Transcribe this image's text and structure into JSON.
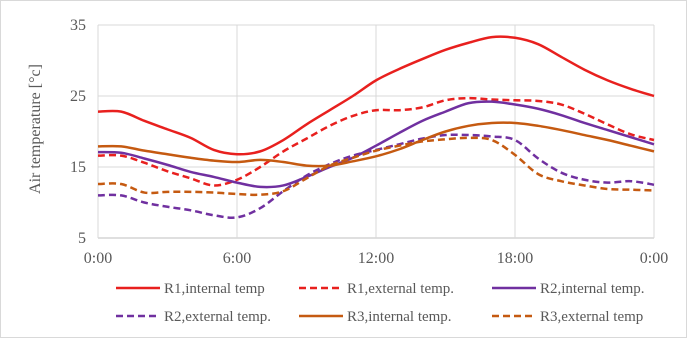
{
  "chart_data": {
    "type": "line",
    "title": "",
    "xlabel": "",
    "ylabel": "Air temperature [°c]",
    "x_ticks": [
      "0:00",
      "6:00",
      "12:00",
      "18:00",
      "0:00"
    ],
    "x_range": [
      0,
      24
    ],
    "y_ticks": [
      "5",
      "15",
      "25",
      "35"
    ],
    "ylim": [
      5,
      35
    ],
    "grid": "vertical and horizontal major gridlines",
    "legend_position": "bottom",
    "series": [
      {
        "name": "R1,internal temp",
        "color": "#e8201e",
        "dash": "solid",
        "x": [
          0,
          1,
          2,
          3,
          4,
          5,
          6,
          7,
          8,
          9,
          10,
          11,
          12,
          13,
          14,
          15,
          16,
          17,
          18,
          19,
          20,
          21,
          22,
          23,
          24
        ],
        "y": [
          22.8,
          22.8,
          21.5,
          20.3,
          19.1,
          17.4,
          16.8,
          17.2,
          18.8,
          21.0,
          23.0,
          25.0,
          27.2,
          28.8,
          30.2,
          31.5,
          32.5,
          33.3,
          33.2,
          32.3,
          30.5,
          28.7,
          27.2,
          26.0,
          25.0
        ]
      },
      {
        "name": "R1,external temp.",
        "color": "#e8201e",
        "dash": "dashed",
        "x": [
          0,
          1,
          2,
          3,
          4,
          5,
          6,
          7,
          8,
          9,
          10,
          11,
          12,
          13,
          14,
          15,
          16,
          17,
          18,
          19,
          20,
          21,
          22,
          23,
          24
        ],
        "y": [
          16.6,
          16.6,
          15.6,
          14.4,
          13.4,
          12.4,
          13.2,
          15.0,
          17.2,
          19.0,
          20.8,
          22.2,
          23.0,
          23.0,
          23.4,
          24.4,
          24.7,
          24.5,
          24.4,
          24.3,
          23.8,
          22.5,
          21.0,
          19.6,
          18.8
        ]
      },
      {
        "name": "R2,internal temp.",
        "color": "#7030a0",
        "dash": "solid",
        "x": [
          0,
          1,
          2,
          3,
          4,
          5,
          6,
          7,
          8,
          9,
          10,
          11,
          12,
          13,
          14,
          15,
          16,
          17,
          18,
          19,
          20,
          21,
          22,
          23,
          24
        ],
        "y": [
          17.1,
          17.0,
          16.2,
          15.3,
          14.3,
          13.6,
          12.8,
          12.2,
          12.4,
          13.6,
          15.0,
          16.3,
          18.0,
          19.8,
          21.5,
          22.8,
          24.0,
          24.2,
          23.8,
          23.2,
          22.3,
          21.2,
          20.2,
          19.2,
          18.2
        ]
      },
      {
        "name": "R2,external temp.",
        "color": "#7030a0",
        "dash": "dashed",
        "x": [
          0,
          1,
          2,
          3,
          4,
          5,
          6,
          7,
          8,
          9,
          10,
          11,
          12,
          13,
          14,
          15,
          16,
          17,
          18,
          19,
          20,
          21,
          22,
          23,
          24
        ],
        "y": [
          11.0,
          11.0,
          10.0,
          9.4,
          8.9,
          8.2,
          7.9,
          9.2,
          11.6,
          13.8,
          15.4,
          16.6,
          17.4,
          18.2,
          19.0,
          19.5,
          19.5,
          19.3,
          18.8,
          16.2,
          14.2,
          13.2,
          12.8,
          13.0,
          12.5
        ]
      },
      {
        "name": "R3,internal temp.",
        "color": "#c55a11",
        "dash": "solid",
        "x": [
          0,
          1,
          2,
          3,
          4,
          5,
          6,
          7,
          8,
          9,
          10,
          11,
          12,
          13,
          14,
          15,
          16,
          17,
          18,
          19,
          20,
          21,
          22,
          23,
          24
        ],
        "y": [
          17.9,
          17.9,
          17.3,
          16.8,
          16.3,
          15.9,
          15.7,
          16.0,
          15.7,
          15.2,
          15.2,
          15.8,
          16.5,
          17.5,
          18.8,
          20.0,
          20.8,
          21.2,
          21.2,
          20.8,
          20.2,
          19.5,
          18.8,
          18.0,
          17.2
        ]
      },
      {
        "name": "R3,external temp",
        "color": "#c55a11",
        "dash": "dashed",
        "x": [
          0,
          1,
          2,
          3,
          4,
          5,
          6,
          7,
          8,
          9,
          10,
          11,
          12,
          13,
          14,
          15,
          16,
          17,
          18,
          19,
          20,
          21,
          22,
          23,
          24
        ],
        "y": [
          12.6,
          12.6,
          11.4,
          11.5,
          11.5,
          11.4,
          11.2,
          11.1,
          11.6,
          13.4,
          15.2,
          16.3,
          17.3,
          18.0,
          18.6,
          18.9,
          19.1,
          18.8,
          16.7,
          14.0,
          13.0,
          12.4,
          11.9,
          11.8,
          11.7
        ]
      }
    ]
  }
}
